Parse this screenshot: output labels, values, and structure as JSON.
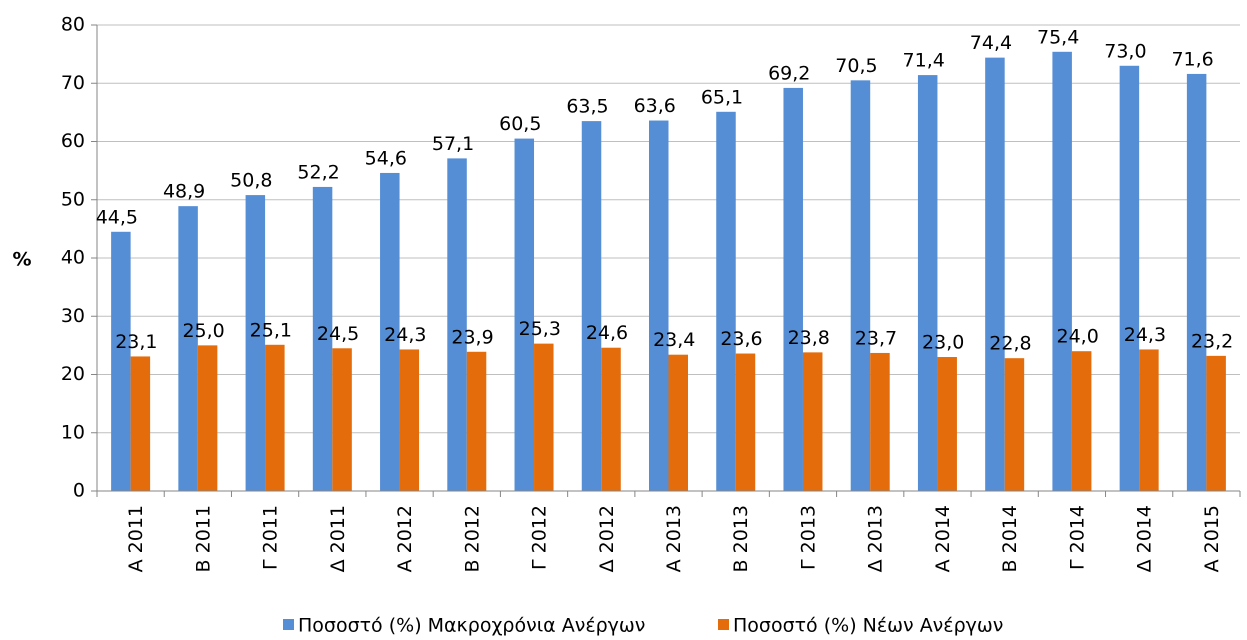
{
  "chart_data": {
    "type": "bar",
    "ylabel": "%",
    "categories": [
      "Α 2011",
      "Β 2011",
      "Γ 2011",
      "Δ 2011",
      "Α 2012",
      "Β 2012",
      "Γ 2012",
      "Δ 2012",
      "Α 2013",
      "Β 2013",
      "Γ 2013",
      "Δ 2013",
      "Α 2014",
      "Β 2014",
      "Γ 2014",
      "Δ 2014",
      "Α 2015"
    ],
    "series": [
      {
        "name": "Ποσοστό (%) Μακροχρόνια Ανέργων",
        "color": "#558ed5",
        "values": [
          44.5,
          48.9,
          50.8,
          52.2,
          54.6,
          57.1,
          60.5,
          63.5,
          63.6,
          65.1,
          69.2,
          70.5,
          71.4,
          74.4,
          75.4,
          73.0,
          71.6
        ],
        "value_labels": [
          "44,5",
          "48,9",
          "50,8",
          "52,2",
          "54,6",
          "57,1",
          "60,5",
          "63,5",
          "63,6",
          "65,1",
          "69,2",
          "70,5",
          "71,4",
          "74,4",
          "75,4",
          "73,0",
          "71,6"
        ]
      },
      {
        "name": "Ποσοστό (%) Νέων Ανέργων",
        "color": "#e46c0a",
        "values": [
          23.1,
          25.0,
          25.1,
          24.5,
          24.3,
          23.9,
          25.3,
          24.6,
          23.4,
          23.6,
          23.8,
          23.7,
          23.0,
          22.8,
          24.0,
          24.3,
          23.2
        ],
        "value_labels": [
          "23,1",
          "25,0",
          "25,1",
          "24,5",
          "24,3",
          "23,9",
          "25,3",
          "24,6",
          "23,4",
          "23,6",
          "23,8",
          "23,7",
          "23,0",
          "22,8",
          "24,0",
          "24,3",
          "23,2"
        ]
      }
    ],
    "ylim": [
      0,
      80
    ],
    "yticks": [
      0,
      10,
      20,
      30,
      40,
      50,
      60,
      70,
      80
    ],
    "grid": true,
    "legend": "bottom"
  }
}
